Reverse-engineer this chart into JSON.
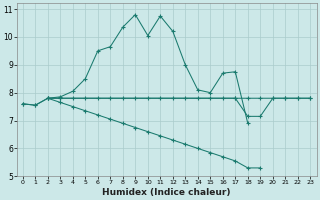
{
  "title": "",
  "xlabel": "Humidex (Indice chaleur)",
  "bg_color": "#cce8e8",
  "grid_color": "#aacccc",
  "line_color": "#1a7a6e",
  "xlim": [
    -0.5,
    23.5
  ],
  "ylim": [
    5,
    11.2
  ],
  "yticks": [
    5,
    6,
    7,
    8,
    9,
    10,
    11
  ],
  "xticks": [
    0,
    1,
    2,
    3,
    4,
    5,
    6,
    7,
    8,
    9,
    10,
    11,
    12,
    13,
    14,
    15,
    16,
    17,
    18,
    19,
    20,
    21,
    22,
    23
  ],
  "line1_x": [
    0,
    1,
    2,
    3,
    4,
    5,
    6,
    7,
    8,
    9,
    10,
    11,
    12,
    13,
    14,
    15,
    16,
    17,
    18
  ],
  "line1_y": [
    7.6,
    7.55,
    7.8,
    7.85,
    8.05,
    8.5,
    9.5,
    9.65,
    10.35,
    10.8,
    10.05,
    10.75,
    10.2,
    9.0,
    8.1,
    8.0,
    8.7,
    8.75,
    6.9
  ],
  "line2_x": [
    0,
    1,
    2,
    3,
    4,
    5,
    6,
    7,
    8,
    9,
    10,
    11,
    12,
    13,
    14,
    15,
    16,
    17,
    18,
    19,
    20,
    21,
    22,
    23
  ],
  "line2_y": [
    7.6,
    7.55,
    7.8,
    7.8,
    7.8,
    7.8,
    7.8,
    7.8,
    7.8,
    7.8,
    7.8,
    7.8,
    7.8,
    7.8,
    7.8,
    7.8,
    7.8,
    7.8,
    7.8,
    7.8,
    7.8,
    7.8,
    7.8,
    7.8
  ],
  "line3_x": [
    2,
    3,
    4,
    5,
    6,
    7,
    8,
    9,
    10,
    11,
    12,
    13,
    14,
    15,
    16,
    17,
    18,
    19
  ],
  "line3_y": [
    7.8,
    7.65,
    7.5,
    7.35,
    7.2,
    7.05,
    6.9,
    6.75,
    6.6,
    6.45,
    6.3,
    6.15,
    6.0,
    5.85,
    5.7,
    5.55,
    5.3,
    5.3
  ],
  "line4_x": [
    2,
    3,
    17,
    18,
    19,
    20,
    21,
    22,
    23
  ],
  "line4_y": [
    7.8,
    7.8,
    7.8,
    7.15,
    7.15,
    7.8,
    7.8,
    7.8,
    7.8
  ]
}
